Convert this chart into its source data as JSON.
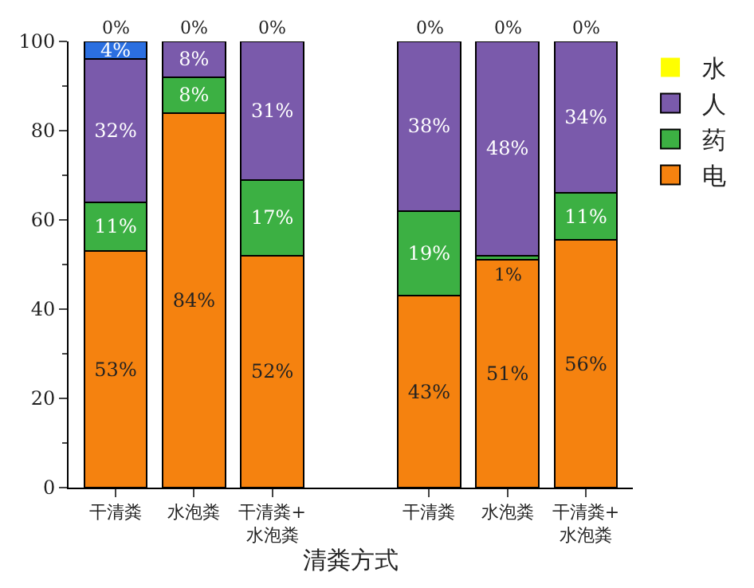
{
  "chart_data": {
    "type": "bar",
    "stacked": true,
    "xlabel": "清粪方式",
    "categories": [
      "干清粪",
      "水泡粪",
      "干清粪+水泡粪",
      null,
      "干清粪",
      "水泡粪",
      "干清粪+水泡粪"
    ],
    "series": [
      {
        "name": "电",
        "color": "#f5820f",
        "values": [
          53,
          84,
          52,
          null,
          43,
          51,
          55.5
        ],
        "value_labels": [
          "53%",
          "84%",
          "52%",
          null,
          "43%",
          "51%",
          "56%"
        ]
      },
      {
        "name": "药",
        "color": "#3cb043",
        "values": [
          11,
          8,
          17,
          null,
          19,
          1,
          10.5
        ],
        "value_labels": [
          "11%",
          "8%",
          "17%",
          null,
          "19%",
          "1%",
          "11%"
        ]
      },
      {
        "name": "人",
        "color": "#7a5aab",
        "values": [
          32,
          8,
          31,
          null,
          38,
          48,
          34
        ],
        "value_labels": [
          "32%",
          "8%",
          "31%",
          null,
          "38%",
          "48%",
          "34%"
        ]
      },
      {
        "name": "水",
        "color": "#ffff00",
        "values": [
          0,
          0,
          0,
          null,
          0,
          0,
          0
        ],
        "value_labels": [
          "0%",
          "0%",
          "0%",
          null,
          "0%",
          "0%",
          "0%"
        ]
      },
      {
        "color": "#2b6fe0",
        "values": [
          4,
          null,
          null,
          null,
          null,
          null,
          null
        ],
        "value_labels": [
          "4%",
          null,
          null,
          null,
          null,
          null,
          null
        ]
      }
    ],
    "ylim": [
      0,
      100
    ],
    "yticks": [
      0,
      20,
      40,
      60,
      80,
      100
    ],
    "legend": "top right"
  }
}
